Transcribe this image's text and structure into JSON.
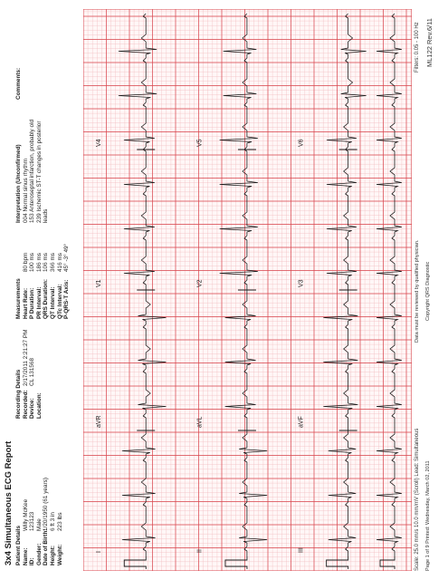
{
  "report": {
    "title": "3x4 Simultaneous ECG Report",
    "patient": {
      "heading": "Patient Details",
      "fields": [
        {
          "label": "Name:",
          "value": "Willy McKee"
        },
        {
          "label": "ID:",
          "value": "123123"
        },
        {
          "label": "Gender:",
          "value": "Male"
        },
        {
          "label": "Date of Birth:",
          "value": "1/20/1950   (61 years)"
        },
        {
          "label": "Height:",
          "value": "6 ft 3 in"
        },
        {
          "label": "Weight:",
          "value": "223 lbs"
        }
      ]
    },
    "recording": {
      "heading": "Recording Details",
      "fields": [
        {
          "label": "Recorded:",
          "value": "2/17/2011 2:21:27 PM"
        },
        {
          "label": "Device:",
          "value": "CL 131568"
        },
        {
          "label": "Location:",
          "value": ""
        }
      ]
    },
    "measurements": {
      "heading": "Measurements",
      "fields": [
        {
          "label": "Heart Rate:",
          "value": "80 bpm"
        },
        {
          "label": "P Duration:",
          "value": "100 ms"
        },
        {
          "label": "PR Interval:",
          "value": "186 ms"
        },
        {
          "label": "QRS Duration:",
          "value": "106 ms"
        },
        {
          "label": "QT Interval:",
          "value": "366 ms"
        },
        {
          "label": "QTc Interval:",
          "value": "416 ms"
        },
        {
          "label": "P-QRS-T Axis:",
          "value": "45°  -3°  49°"
        }
      ]
    },
    "interpretation": {
      "heading": "Interpretation (Unconfirmed)",
      "lines": [
        "004 Normal sinus rhythm",
        "153 Anteroseptal infarction, probably old",
        "239 Ischemic ST-T changes in posterior",
        "leads"
      ]
    },
    "comments": {
      "heading": "Comments:"
    },
    "leads": [
      [
        "I",
        "aVR",
        "V1",
        "V4"
      ],
      [
        "II",
        "aVL",
        "V2",
        "V5"
      ],
      [
        "III",
        "aVF",
        "V3",
        "V6"
      ]
    ],
    "footer": {
      "scale": "Scale: 25.0 mm/s 10.0 mm/mV (Scroll)   Lead: Simultaneous",
      "filters": "Filters: 0.05 - 100 Hz",
      "page": "Page 1 of 9    Printed: Wednesday, March 02, 2011",
      "note": "Data must be reviewed by qualified physician.",
      "copyright": "Copyright QRS Diagnostic",
      "revision": "ML122 Rev.6/11"
    },
    "colors": {
      "grid_major": "#d9474f",
      "grid_minor": "#f1b7bb",
      "trace": "#1a1a1a"
    }
  }
}
